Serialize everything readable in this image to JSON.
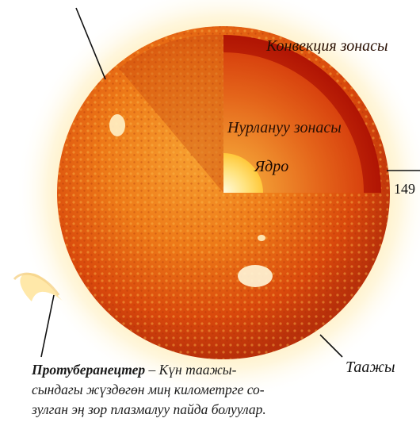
{
  "labels": {
    "convection_zone": "Конвекция зонасы",
    "radiation_zone": "Нурлануу зонасы",
    "core": "Ядро",
    "distance": "149",
    "corona": "Таажы"
  },
  "caption": {
    "term": "Протуберанецтер",
    "line1_rest": " – Күн таажы-",
    "line2": "сындагы жүздөгөн миң километрге со-",
    "line3": "зулган эң зор плазмалуу пайда болуулар."
  },
  "colors": {
    "photosphere_outer": "#d8400a",
    "photosphere_inner": "#f08a1c",
    "convection_zone": "#c81e08",
    "radiation_zone": "#e0600e",
    "core": "#ffe070",
    "corona_glow": "#ffd27a"
  }
}
